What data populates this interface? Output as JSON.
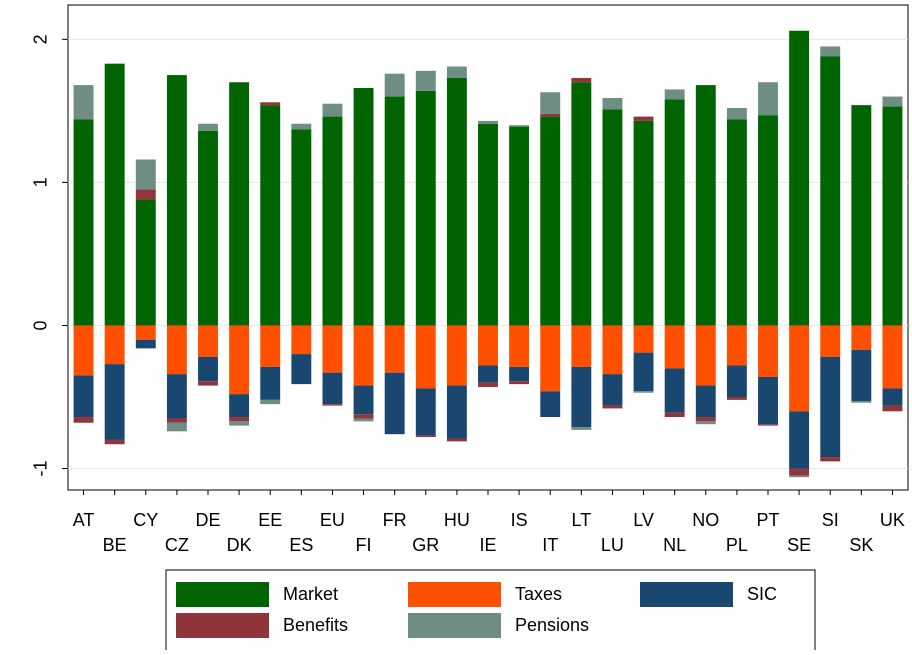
{
  "chart_data": {
    "type": "stacked_bar",
    "categories": [
      "AT",
      "BE",
      "CY",
      "CZ",
      "DE",
      "DK",
      "EE",
      "ES",
      "EU",
      "FI",
      "FR",
      "GR",
      "HU",
      "IE",
      "IS",
      "IT",
      "LT",
      "LU",
      "LV",
      "NL",
      "NO",
      "PL",
      "PT",
      "SE",
      "SI",
      "SK",
      "UK"
    ],
    "series": [
      {
        "name": "Market",
        "color": "#006400",
        "values": [
          1.44,
          1.83,
          0.88,
          1.75,
          1.36,
          1.7,
          1.54,
          1.37,
          1.46,
          1.66,
          1.6,
          1.64,
          1.73,
          1.41,
          1.39,
          1.46,
          1.7,
          1.51,
          1.43,
          1.58,
          1.68,
          1.44,
          1.47,
          2.06,
          1.88,
          1.54,
          1.53
        ]
      },
      {
        "name": "Taxes",
        "color": "#ff5000",
        "values": [
          -0.35,
          -0.27,
          -0.1,
          -0.34,
          -0.22,
          -0.48,
          -0.29,
          -0.2,
          -0.33,
          -0.42,
          -0.33,
          -0.44,
          -0.42,
          -0.28,
          -0.29,
          -0.46,
          -0.29,
          -0.34,
          -0.19,
          -0.3,
          -0.42,
          -0.28,
          -0.36,
          -0.6,
          -0.22,
          -0.17,
          -0.44
        ]
      },
      {
        "name": "SIC",
        "color": "#1a476f",
        "values": [
          -0.29,
          -0.53,
          -0.06,
          -0.31,
          -0.17,
          -0.16,
          -0.23,
          -0.21,
          -0.22,
          -0.2,
          -0.43,
          -0.33,
          -0.37,
          -0.12,
          -0.1,
          -0.18,
          -0.42,
          -0.22,
          -0.27,
          -0.31,
          -0.22,
          -0.22,
          -0.33,
          -0.4,
          -0.7,
          -0.36,
          -0.12
        ]
      },
      {
        "name": "Benefits",
        "color": "#90353b",
        "values": [
          -0.04,
          -0.03,
          0.07,
          -0.03,
          -0.03,
          -0.03,
          0.02,
          0,
          -0.01,
          -0.03,
          0,
          -0.01,
          -0.02,
          -0.03,
          -0.02,
          0.02,
          0.03,
          -0.02,
          0.03,
          -0.03,
          -0.03,
          -0.02,
          -0.01,
          -0.05,
          -0.03,
          0,
          -0.04
        ]
      },
      {
        "name": "Pensions",
        "color": "#6e8e84",
        "values": [
          0.24,
          0,
          0.21,
          -0.06,
          0.05,
          -0.03,
          -0.03,
          0.04,
          0.09,
          -0.02,
          0.16,
          0.14,
          0.08,
          0.02,
          0.01,
          0.15,
          -0.02,
          0.08,
          -0.01,
          0.07,
          -0.02,
          0.08,
          0.23,
          -0.01,
          0.07,
          -0.01,
          0.07
        ]
      }
    ],
    "ylim": [
      -1.15,
      2.24
    ],
    "yticks": [
      -1,
      0,
      1,
      2
    ],
    "grid": true
  }
}
